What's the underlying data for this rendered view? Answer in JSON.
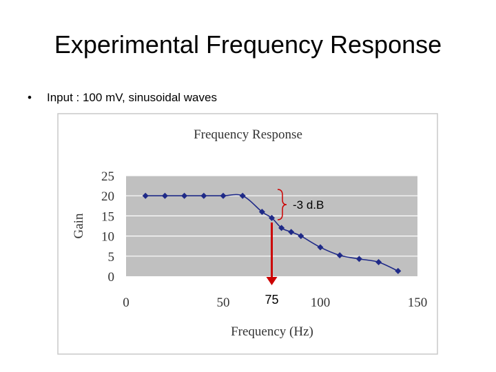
{
  "slide": {
    "title": "Experimental Frequency Response",
    "bullet_marker": "•",
    "bullet_text": "Input : 100 mV, sinusoidal waves"
  },
  "chart_data": {
    "type": "line",
    "title": "Frequency Response",
    "xlabel": "Frequency (Hz)",
    "ylabel": "Gain",
    "xlim": [
      0,
      150
    ],
    "ylim": [
      0,
      25
    ],
    "xticks": [
      0,
      50,
      100,
      150
    ],
    "yticks": [
      0,
      5,
      10,
      15,
      20,
      25
    ],
    "grid": true,
    "legend": "none",
    "series": [
      {
        "name": "Gain",
        "x": [
          10,
          20,
          30,
          40,
          50,
          60,
          70,
          75,
          80,
          85,
          90,
          100,
          110,
          120,
          130,
          140
        ],
        "y": [
          20,
          20,
          20,
          20,
          20,
          20,
          16,
          14.5,
          12,
          11,
          10,
          7.2,
          5.2,
          4.3,
          3.5,
          1.3
        ]
      }
    ],
    "annotations": {
      "db_label": "-3 d.B",
      "cutoff_label": "75",
      "cutoff_x": 75
    },
    "colors": {
      "line": "#1f2a88",
      "arrow": "#cc0000",
      "plot_bg": "#c0c0c0",
      "frame_bg": "#ffffff",
      "grid": "#ffffff"
    }
  }
}
